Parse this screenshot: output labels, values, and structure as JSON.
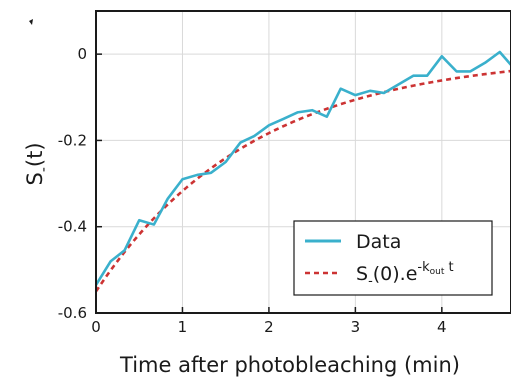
{
  "chart_data": {
    "type": "line",
    "xlabel": "Time after photobleaching (min)",
    "ylabel": "S₋(t)",
    "xlim": [
      0,
      4.8
    ],
    "ylim": [
      -0.6,
      0.1
    ],
    "xticks": [
      0,
      1,
      2,
      3,
      4
    ],
    "xtick_labels": [
      "0",
      "1",
      "2",
      "3",
      "4"
    ],
    "yticks": [
      -0.6,
      -0.4,
      -0.2,
      0
    ],
    "ytick_labels": [
      "-0.6",
      "-0.4",
      "-0.2",
      "0"
    ],
    "grid": true,
    "legend_position": "bottom-right",
    "series": [
      {
        "name": "Data",
        "style": "solid",
        "color": "#3ab0cc",
        "x": [
          0,
          0.17,
          0.33,
          0.5,
          0.67,
          0.83,
          1.0,
          1.17,
          1.33,
          1.5,
          1.67,
          1.83,
          2.0,
          2.17,
          2.33,
          2.5,
          2.67,
          2.83,
          3.0,
          3.17,
          3.33,
          3.5,
          3.67,
          3.83,
          4.0,
          4.17,
          4.33,
          4.5,
          4.67,
          4.8
        ],
        "y": [
          -0.535,
          -0.48,
          -0.455,
          -0.385,
          -0.395,
          -0.335,
          -0.29,
          -0.28,
          -0.275,
          -0.25,
          -0.205,
          -0.19,
          -0.165,
          -0.15,
          -0.135,
          -0.13,
          -0.145,
          -0.08,
          -0.095,
          -0.085,
          -0.09,
          -0.07,
          -0.05,
          -0.05,
          -0.005,
          -0.04,
          -0.04,
          -0.02,
          0.005,
          -0.025
        ]
      },
      {
        "name_prefix": "S",
        "name_sub": "-",
        "name_mid": "(0).e",
        "name_sup": "-k",
        "name_sup_sub": "out",
        "name_suffix": " t",
        "style": "dashed",
        "color": "#cc3333",
        "fit": {
          "amplitude": -0.55,
          "rate": 0.55
        }
      }
    ]
  }
}
